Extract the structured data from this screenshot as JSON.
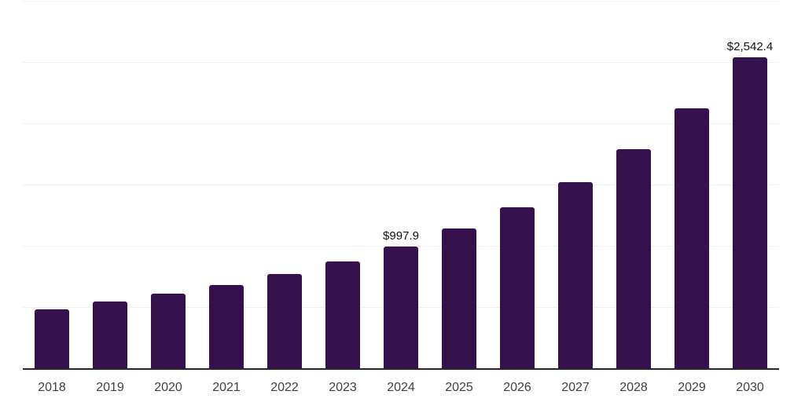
{
  "chart_data": {
    "type": "bar",
    "title": "",
    "xlabel": "",
    "ylabel": "",
    "categories": [
      "2018",
      "2019",
      "2020",
      "2021",
      "2022",
      "2023",
      "2024",
      "2025",
      "2026",
      "2027",
      "2028",
      "2029",
      "2030"
    ],
    "values": [
      487,
      551,
      617,
      688,
      776,
      881,
      997.9,
      1146,
      1322,
      1525,
      1798,
      2130,
      2542.4
    ],
    "data_labels": [
      "",
      "",
      "",
      "",
      "",
      "",
      "$997.9",
      "",
      "",
      "",
      "",
      "",
      "$2,542.4"
    ],
    "ylim": [
      0,
      3000
    ],
    "grid_step": 500,
    "grid": true,
    "y_tick_labels_visible": false,
    "legend": false
  },
  "colors": {
    "bar": "#35124E",
    "axis_line": "#262626",
    "gridline": "#F0F0F0",
    "tick_label": "#404040",
    "data_label": "#111111",
    "background": "#FFFFFF"
  }
}
